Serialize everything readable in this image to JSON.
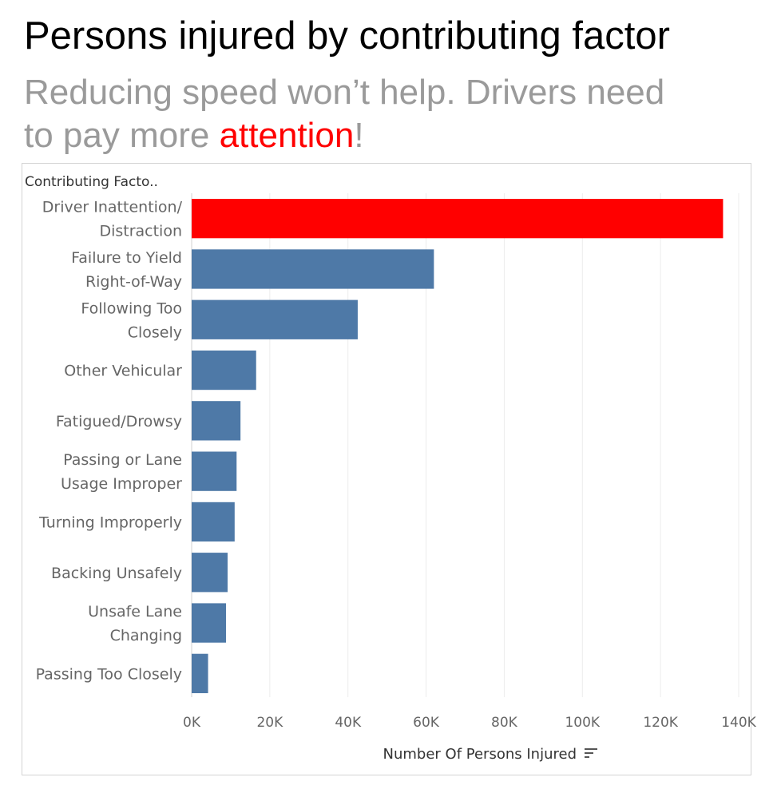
{
  "title": "Persons injured by contributing factor",
  "subtitle": {
    "line1": "Reducing speed won’t help. Drivers need",
    "line2_pre": "to pay more ",
    "highlight": "attention",
    "line2_post": "!"
  },
  "colors": {
    "highlight": "#ff0000",
    "bar": "#4e79a7",
    "subtitle": "#9a9a9a",
    "gridline": "#ececec",
    "axis_text": "#666666"
  },
  "icons": {
    "sort": "sort-descending-icon"
  },
  "chart_data": {
    "type": "bar",
    "orientation": "horizontal",
    "row_header": "Contributing Facto..",
    "xlabel": "Number Of Persons Injured",
    "xlim": [
      0,
      140000
    ],
    "x_ticks": [
      0,
      20000,
      40000,
      60000,
      80000,
      100000,
      120000,
      140000
    ],
    "x_tick_labels": [
      "0K",
      "20K",
      "40K",
      "60K",
      "80K",
      "100K",
      "120K",
      "140K"
    ],
    "grid": "vertical gridlines",
    "categories": [
      [
        "Driver Inattention/",
        "Distraction"
      ],
      [
        "Failure to Yield",
        "Right-of-Way"
      ],
      [
        "Following Too",
        "Closely"
      ],
      [
        "Other Vehicular"
      ],
      [
        "Fatigued/Drowsy"
      ],
      [
        "Passing or Lane",
        "Usage Improper"
      ],
      [
        "Turning Improperly"
      ],
      [
        "Backing Unsafely"
      ],
      [
        "Unsafe Lane",
        "Changing"
      ],
      [
        "Passing Too Closely"
      ]
    ],
    "values": [
      136000,
      62000,
      42500,
      16500,
      12500,
      11500,
      11000,
      9200,
      8800,
      4200
    ],
    "highlighted_category_index": 0
  }
}
